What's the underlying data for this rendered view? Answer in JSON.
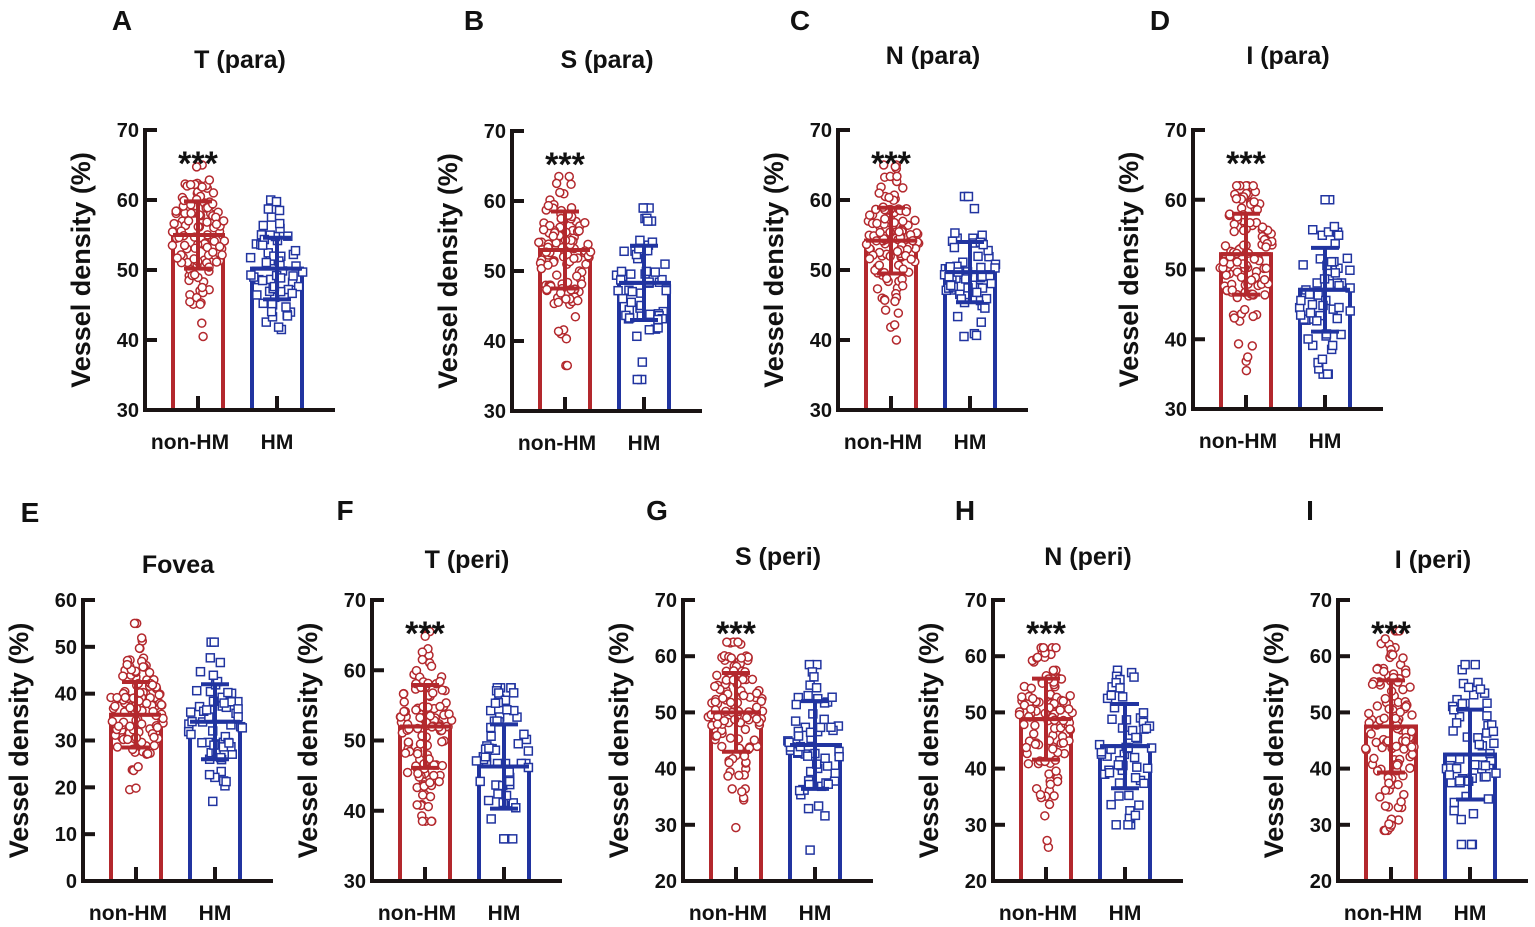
{
  "colors": {
    "non_hm": "#b3282d",
    "hm": "#2134a0",
    "axis": "#1a1414"
  },
  "chart_data": [
    {
      "type": "bar",
      "letter": "A",
      "title": "T (para)",
      "ylabel": "Vessel density (%)",
      "ylim": [
        30,
        70
      ],
      "yticks": [
        30,
        40,
        50,
        60,
        70
      ],
      "categories": [
        "non-HM",
        "HM"
      ],
      "significance": "***",
      "series": [
        {
          "name": "non-HM",
          "mean": 55.0,
          "sd": 4.8,
          "min": 40.5,
          "max": 65.0
        },
        {
          "name": "HM",
          "mean": 50.2,
          "sd": 4.4,
          "min": 41.5,
          "max": 60.0
        }
      ]
    },
    {
      "type": "bar",
      "letter": "B",
      "title": "S (para)",
      "ylabel": "Vessel density (%)",
      "ylim": [
        30,
        70
      ],
      "yticks": [
        30,
        40,
        50,
        60,
        70
      ],
      "categories": [
        "non-HM",
        "HM"
      ],
      "significance": "***",
      "series": [
        {
          "name": "non-HM",
          "mean": 53.0,
          "sd": 5.5,
          "min": 36.5,
          "max": 63.5
        },
        {
          "name": "HM",
          "mean": 48.3,
          "sd": 5.3,
          "min": 34.5,
          "max": 59.0
        }
      ]
    },
    {
      "type": "bar",
      "letter": "C",
      "title": "N (para)",
      "ylabel": "Vessel density (%)",
      "ylim": [
        30,
        70
      ],
      "yticks": [
        30,
        40,
        50,
        60,
        70
      ],
      "categories": [
        "non-HM",
        "HM"
      ],
      "significance": "***",
      "series": [
        {
          "name": "non-HM",
          "mean": 54.2,
          "sd": 4.7,
          "min": 40.0,
          "max": 65.0
        },
        {
          "name": "HM",
          "mean": 49.7,
          "sd": 4.3,
          "min": 40.5,
          "max": 60.5
        }
      ]
    },
    {
      "type": "bar",
      "letter": "D",
      "title": "I (para)",
      "ylabel": "Vessel density (%)",
      "ylim": [
        30,
        70
      ],
      "yticks": [
        30,
        40,
        50,
        60,
        70
      ],
      "categories": [
        "non-HM",
        "HM"
      ],
      "significance": "***",
      "series": [
        {
          "name": "non-HM",
          "mean": 52.2,
          "sd": 5.8,
          "min": 35.5,
          "max": 62.0
        },
        {
          "name": "HM",
          "mean": 47.1,
          "sd": 6.0,
          "min": 35.0,
          "max": 60.0
        }
      ]
    },
    {
      "type": "bar",
      "letter": "E",
      "title": "Fovea",
      "ylabel": "Vessel density (%)",
      "ylim": [
        0,
        60
      ],
      "yticks": [
        0,
        10,
        20,
        30,
        40,
        50,
        60
      ],
      "categories": [
        "non-HM",
        "HM"
      ],
      "significance": "",
      "series": [
        {
          "name": "non-HM",
          "mean": 35.5,
          "sd": 7.0,
          "min": 19.5,
          "max": 55.0
        },
        {
          "name": "HM",
          "mean": 34.0,
          "sd": 8.0,
          "min": 17.0,
          "max": 51.0
        }
      ]
    },
    {
      "type": "bar",
      "letter": "F",
      "title": "T (peri)",
      "ylabel": "Vessel density (%)",
      "ylim": [
        30,
        70
      ],
      "yticks": [
        30,
        40,
        50,
        60,
        70
      ],
      "categories": [
        "non-HM",
        "HM"
      ],
      "significance": "***",
      "series": [
        {
          "name": "non-HM",
          "mean": 52.0,
          "sd": 5.9,
          "min": 38.5,
          "max": 65.5
        },
        {
          "name": "HM",
          "mean": 46.3,
          "sd": 6.0,
          "min": 36.0,
          "max": 57.5
        }
      ]
    },
    {
      "type": "bar",
      "letter": "G",
      "title": "S (peri)",
      "ylabel": "Vessel density (%)",
      "ylim": [
        20,
        70
      ],
      "yticks": [
        20,
        30,
        40,
        50,
        60,
        70
      ],
      "categories": [
        "non-HM",
        "HM"
      ],
      "significance": "***",
      "series": [
        {
          "name": "non-HM",
          "mean": 50.0,
          "sd": 7.0,
          "min": 29.5,
          "max": 62.5
        },
        {
          "name": "HM",
          "mean": 44.2,
          "sd": 7.8,
          "min": 25.5,
          "max": 58.5
        }
      ]
    },
    {
      "type": "bar",
      "letter": "H",
      "title": "N (peri)",
      "ylabel": "Vessel density (%)",
      "ylim": [
        20,
        70
      ],
      "yticks": [
        20,
        30,
        40,
        50,
        60,
        70
      ],
      "categories": [
        "non-HM",
        "HM"
      ],
      "significance": "***",
      "series": [
        {
          "name": "non-HM",
          "mean": 48.8,
          "sd": 7.2,
          "min": 26.0,
          "max": 61.5
        },
        {
          "name": "HM",
          "mean": 44.0,
          "sd": 7.5,
          "min": 30.0,
          "max": 57.5
        }
      ]
    },
    {
      "type": "bar",
      "letter": "I",
      "title": "I (peri)",
      "ylabel": "Vessel density (%)",
      "ylim": [
        20,
        70
      ],
      "yticks": [
        20,
        30,
        40,
        50,
        60,
        70
      ],
      "categories": [
        "non-HM",
        "HM"
      ],
      "significance": "***",
      "series": [
        {
          "name": "non-HM",
          "mean": 47.5,
          "sd": 8.2,
          "min": 29.0,
          "max": 64.5
        },
        {
          "name": "HM",
          "mean": 42.5,
          "sd": 8.0,
          "min": 26.5,
          "max": 58.5
        }
      ]
    }
  ]
}
